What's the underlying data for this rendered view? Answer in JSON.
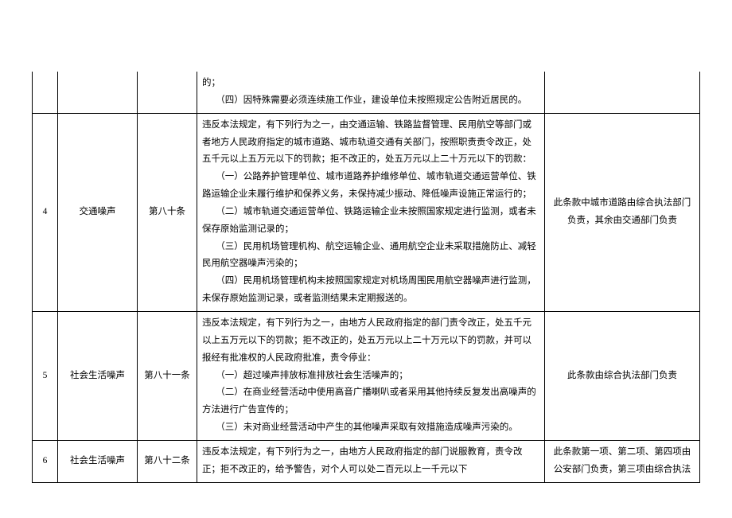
{
  "rows": [
    {
      "idx": "",
      "cat": "",
      "art": "",
      "desc": "的；\n　　（四）因特殊需要必须连续施工作业，建设单位未按照规定公告附近居民的。",
      "note": ""
    },
    {
      "idx": "4",
      "cat": "交通噪声",
      "art": "第八十条",
      "desc": "违反本法规定，有下列行为之一，由交通运输、铁路监督管理、民用航空等部门或者地方人民政府指定的城市道路、城市轨道交通有关部门，按照职责责令改正，处五千元以上五万元以下的罚款；拒不改正的，处五万元以上二十万元以下的罚款：\n　　（一）公路养护管理单位、城市道路养护维修单位、城市轨道交通运营单位、铁路运输企业未履行维护和保养义务，未保持减少振动、降低噪声设施正常运行的；\n　　（二）城市轨道交通运营单位、铁路运输企业未按照国家规定进行监测，或者未保存原始监测记录的；\n　　（三）民用机场管理机构、航空运输企业、通用航空企业未采取措施防止、减轻民用航空器噪声污染的；\n　　（四）民用机场管理机构未按照国家规定对机场周围民用航空器噪声进行监测，未保存原始监测记录，或者监测结果未定期报送的。",
      "note": "此条款中城市道路由综合执法部门负责，其余由交通部门负责"
    },
    {
      "idx": "5",
      "cat": "社会生活噪声",
      "art": "第八十一条",
      "desc": "违反本法规定，有下列行为之一，由地方人民政府指定的部门责令改正，处五千元以上五万元以下的罚款；拒不改正的，处五万元以上二十万元以下的罚款，并可以报经有批准权的人民政府批准，责令停业：\n　　（一）超过噪声排放标准排放社会生活噪声的；\n　　（二）在商业经营活动中使用高音广播喇叭或者采用其他持续反复发出高噪声的方法进行广告宣传的；\n　　（三）未对商业经营活动中产生的其他噪声采取有效措施造成噪声污染的。",
      "note": "此条款由综合执法部门负责"
    },
    {
      "idx": "6",
      "cat": "社会生活噪声",
      "art": "第八十二条",
      "desc": "违反本法规定，有下列行为之一，由地方人民政府指定的部门说服教育，责令改正；拒不改正的，给予警告，对个人可以处二百元以上一千元以下",
      "note": "此条款第一项、第二项、第四项由公安部门负责，第三项由综合执法"
    }
  ]
}
